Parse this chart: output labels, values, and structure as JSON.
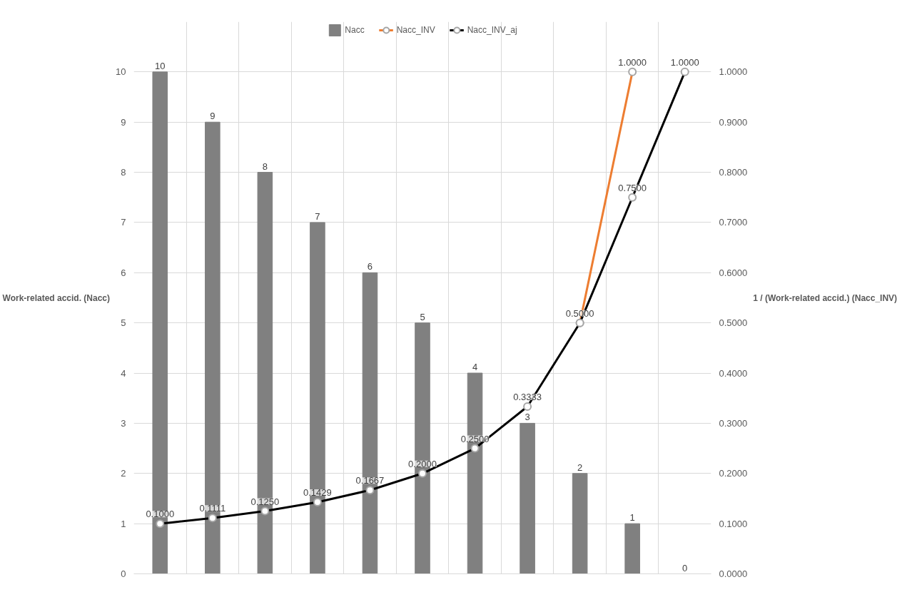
{
  "chart_data": {
    "type": "bar",
    "categories": [
      null,
      null,
      null,
      null,
      null,
      null,
      null,
      null,
      null,
      null,
      null
    ],
    "ylabel": "Work-related accid. (Nacc)",
    "y2label": "1 / (Work-related accid.) (Nacc_INV)",
    "ylim": [
      0,
      10
    ],
    "yticks": [
      0,
      1,
      2,
      3,
      4,
      5,
      6,
      7,
      8,
      9,
      10
    ],
    "y2lim": [
      0,
      1
    ],
    "y2ticks": [
      {
        "value": 0,
        "label": "0.0000"
      },
      {
        "value": 0.1,
        "label": "0.1000"
      },
      {
        "value": 0.2,
        "label": "0.2000"
      },
      {
        "value": 0.3,
        "label": "0.3000"
      },
      {
        "value": 0.4,
        "label": "0.4000"
      },
      {
        "value": 0.5,
        "label": "0.5000"
      },
      {
        "value": 0.6,
        "label": "0.6000"
      },
      {
        "value": 0.7,
        "label": "0.7000"
      },
      {
        "value": 0.8,
        "label": "0.8000"
      },
      {
        "value": 0.9,
        "label": "0.9000"
      },
      {
        "value": 1,
        "label": "1.0000"
      }
    ],
    "grid": true,
    "legend": "top",
    "marker": "circle",
    "series": [
      {
        "name": "Nacc",
        "color": "#808080",
        "values": [
          10,
          9,
          8,
          7,
          6,
          5,
          4,
          3,
          2,
          1,
          0
        ],
        "value_labels": [
          "10",
          "9",
          "8",
          "7",
          "6",
          "5",
          "4",
          "3",
          "2",
          "1",
          "0"
        ]
      },
      {
        "name": "Nacc_INV",
        "type": "line",
        "axis": "y2",
        "color": "#ed7d31",
        "values": [
          null,
          null,
          null,
          null,
          null,
          null,
          null,
          null,
          0.5,
          1.0,
          null
        ],
        "value_labels": [
          null,
          null,
          null,
          null,
          null,
          null,
          null,
          null,
          null,
          "1.0000",
          null
        ]
      },
      {
        "name": "Nacc_INV_aj",
        "type": "line",
        "axis": "y2",
        "color": "#000000",
        "values": [
          0.1,
          0.1111,
          0.125,
          0.1429,
          0.1667,
          0.2,
          0.25,
          0.3333,
          0.5,
          0.75,
          1.0
        ],
        "value_labels": [
          "0.1000",
          "0.1111",
          "0.1250",
          "0.1429",
          "0.1667",
          "0.2000",
          "0.2500",
          "0.3333",
          "0.5000",
          "0.7500",
          "1.0000"
        ]
      }
    ]
  }
}
